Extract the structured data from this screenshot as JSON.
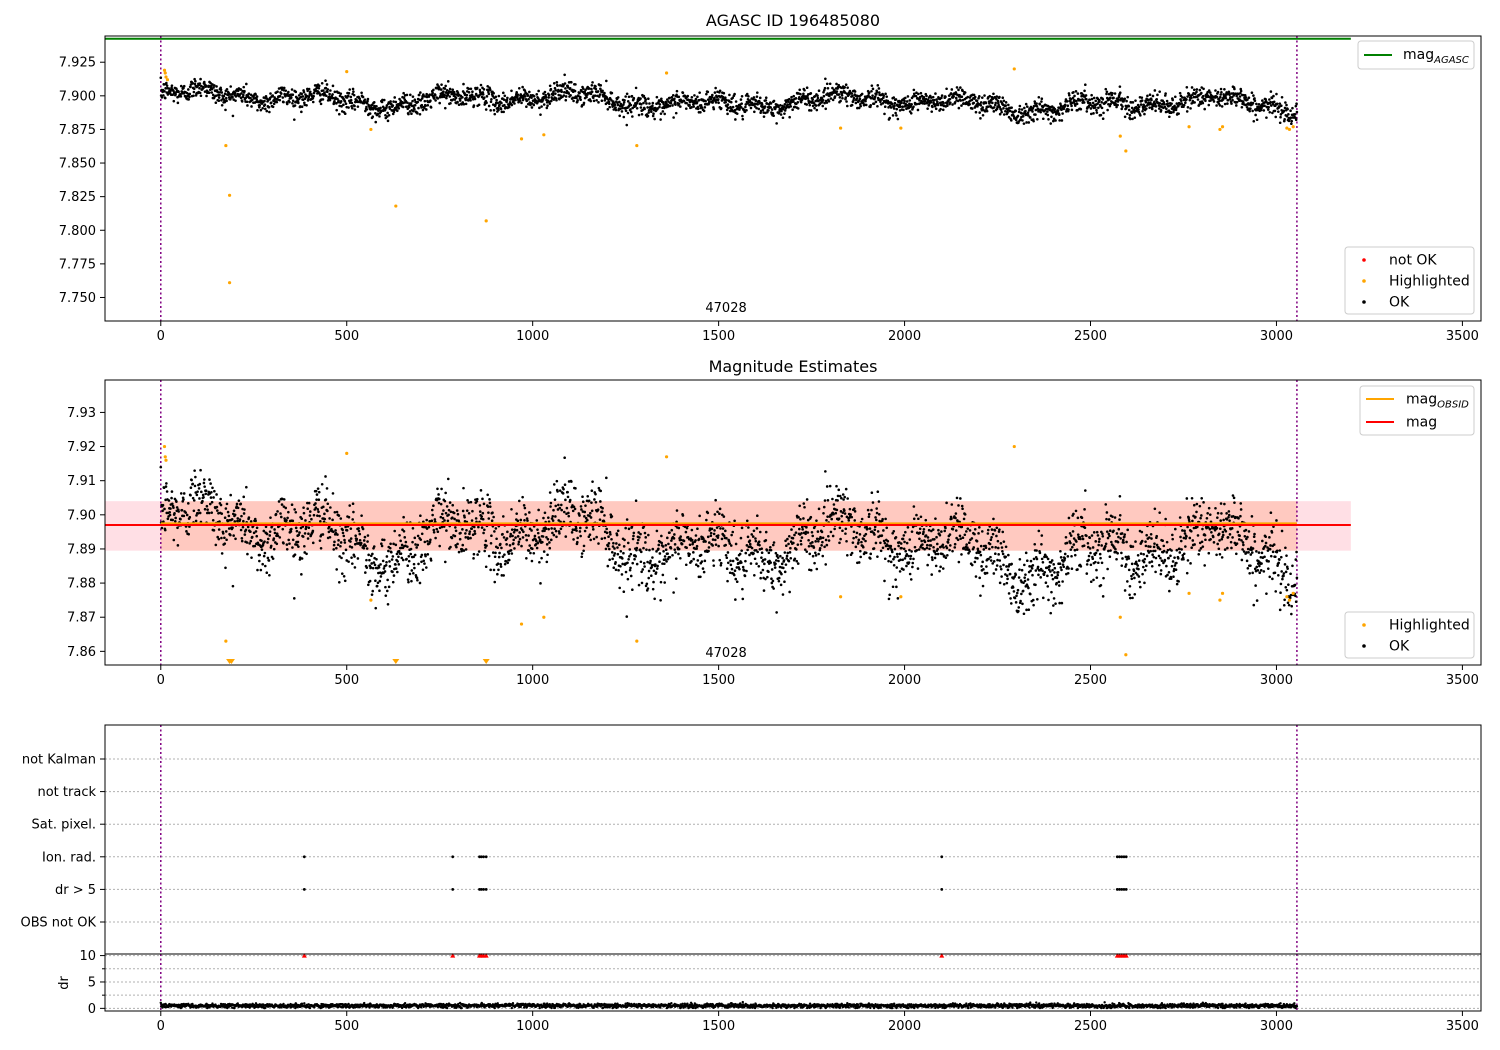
{
  "chart_data": [
    {
      "type": "scatter",
      "title": "AGASC ID 196485080",
      "xlabel": "",
      "ylabel": "",
      "xlim": [
        -150,
        3550
      ],
      "ylim": [
        7.7325,
        7.9445
      ],
      "xticks": [
        0,
        500,
        1000,
        1500,
        2000,
        2500,
        3000,
        3500
      ],
      "yticks": [
        7.75,
        7.775,
        7.8,
        7.825,
        7.85,
        7.875,
        7.9,
        7.925
      ],
      "ytick_labels": [
        "7.750",
        "7.775",
        "7.800",
        "7.825",
        "7.850",
        "7.875",
        "7.900",
        "7.925"
      ],
      "annotation": "47028",
      "annotation_x": 1520,
      "vlines": [
        0,
        3055
      ],
      "vline_color": "#800080",
      "lines": [
        {
          "name": "mag_AGASC",
          "label_main": "mag",
          "label_sub": "AGASC",
          "x": [
            -150,
            3200
          ],
          "y": [
            7.9425,
            7.9425
          ],
          "color": "#008000"
        }
      ],
      "ok_series": {
        "n": 3056,
        "base_y": 7.899,
        "noise": 0.0045
      },
      "highlighted": [
        {
          "x": 10,
          "y": 7.919
        },
        {
          "x": 12,
          "y": 7.917
        },
        {
          "x": 14,
          "y": 7.914
        },
        {
          "x": 18,
          "y": 7.912
        },
        {
          "x": 175,
          "y": 7.863
        },
        {
          "x": 185,
          "y": 7.826
        },
        {
          "x": 185,
          "y": 7.761
        },
        {
          "x": 500,
          "y": 7.918
        },
        {
          "x": 565,
          "y": 7.875
        },
        {
          "x": 632,
          "y": 7.818
        },
        {
          "x": 875,
          "y": 7.807
        },
        {
          "x": 970,
          "y": 7.868
        },
        {
          "x": 1030,
          "y": 7.871
        },
        {
          "x": 1280,
          "y": 7.863
        },
        {
          "x": 1360,
          "y": 7.917
        },
        {
          "x": 1828,
          "y": 7.876
        },
        {
          "x": 1990,
          "y": 7.876
        },
        {
          "x": 2295,
          "y": 7.92
        },
        {
          "x": 2580,
          "y": 7.87
        },
        {
          "x": 2595,
          "y": 7.859
        },
        {
          "x": 2765,
          "y": 7.877
        },
        {
          "x": 2848,
          "y": 7.875
        },
        {
          "x": 2855,
          "y": 7.877
        },
        {
          "x": 3028,
          "y": 7.876
        },
        {
          "x": 3035,
          "y": 7.875
        },
        {
          "x": 3045,
          "y": 7.877
        }
      ],
      "legend_lines": [
        "mag_AGASC"
      ],
      "legend_points": [
        {
          "label": "not OK",
          "color": "#ff0000"
        },
        {
          "label": "Highlighted",
          "color": "#ffa500"
        },
        {
          "label": "OK",
          "color": "#000000"
        }
      ]
    },
    {
      "type": "scatter",
      "title": "Magnitude Estimates",
      "xlabel": "",
      "ylabel": "",
      "xlim": [
        -150,
        3550
      ],
      "ylim": [
        7.856,
        7.9395
      ],
      "xticks": [
        0,
        500,
        1000,
        1500,
        2000,
        2500,
        3000,
        3500
      ],
      "yticks": [
        7.86,
        7.87,
        7.88,
        7.89,
        7.9,
        7.91,
        7.92,
        7.93
      ],
      "ytick_labels": [
        "7.86",
        "7.87",
        "7.88",
        "7.89",
        "7.90",
        "7.91",
        "7.92",
        "7.93"
      ],
      "annotation": "47028",
      "annotation_x": 1520,
      "vlines": [
        0,
        3055
      ],
      "vline_color": "#800080",
      "bands": [
        {
          "x": [
            -150,
            3200
          ],
          "y": [
            7.8895,
            7.904
          ],
          "color": "#ffc0cb",
          "opacity": 0.5
        },
        {
          "x": [
            0,
            3055
          ],
          "y": [
            7.8895,
            7.904
          ],
          "color": "#ffa07a",
          "opacity": 0.35
        }
      ],
      "lines": [
        {
          "name": "mag_OBSID",
          "label_main": "mag",
          "label_sub": "OBSID",
          "x": [
            0,
            3055
          ],
          "y": [
            7.8975,
            7.8975
          ],
          "color": "#ffa500"
        },
        {
          "name": "mag",
          "label_main": "mag",
          "label_sub": "",
          "x": [
            -150,
            3200
          ],
          "y": [
            7.897,
            7.897
          ],
          "color": "#ff0000"
        }
      ],
      "ok_series": {
        "n": 3056,
        "base_y": 7.896,
        "noise": 0.0055
      },
      "highlighted": [
        {
          "x": 10,
          "y": 7.92
        },
        {
          "x": 12,
          "y": 7.917
        },
        {
          "x": 14,
          "y": 7.916
        },
        {
          "x": 175,
          "y": 7.863
        },
        {
          "x": 500,
          "y": 7.918
        },
        {
          "x": 565,
          "y": 7.875
        },
        {
          "x": 970,
          "y": 7.868
        },
        {
          "x": 1030,
          "y": 7.87
        },
        {
          "x": 1280,
          "y": 7.863
        },
        {
          "x": 1360,
          "y": 7.917
        },
        {
          "x": 1828,
          "y": 7.876
        },
        {
          "x": 1990,
          "y": 7.876
        },
        {
          "x": 2295,
          "y": 7.92
        },
        {
          "x": 2580,
          "y": 7.87
        },
        {
          "x": 2595,
          "y": 7.859
        },
        {
          "x": 2765,
          "y": 7.877
        },
        {
          "x": 2848,
          "y": 7.875
        },
        {
          "x": 2855,
          "y": 7.877
        },
        {
          "x": 3028,
          "y": 7.876
        },
        {
          "x": 3035,
          "y": 7.875
        },
        {
          "x": 3045,
          "y": 7.877
        }
      ],
      "out_of_range_markers": [
        {
          "x": 185
        },
        {
          "x": 190
        },
        {
          "x": 632
        },
        {
          "x": 875
        }
      ],
      "legend_lines": [
        "mag_OBSID",
        "mag"
      ],
      "legend_points": [
        {
          "label": "Highlighted",
          "color": "#ffa500"
        },
        {
          "label": "OK",
          "color": "#000000"
        }
      ]
    },
    {
      "type": "scatter",
      "title": "",
      "xlabel": "",
      "ylabel": "",
      "xlim": [
        -150,
        3550
      ],
      "categories": [
        "not Kalman",
        "not track",
        "Sat. pixel.",
        "Ion. rad.",
        "dr > 5",
        "OBS not OK"
      ],
      "vlines": [
        0,
        3055
      ],
      "vline_color": "#800080",
      "flag_points": {
        "Ion. rad.": [
          386,
          785,
          857,
          862,
          868,
          875,
          2100,
          2572,
          2578,
          2584,
          2590,
          2596
        ],
        "dr > 5": [
          386,
          785,
          857,
          862,
          868,
          875,
          2100,
          2572,
          2578,
          2584,
          2590,
          2596
        ]
      }
    },
    {
      "type": "scatter",
      "title": "",
      "xlabel": "",
      "ylabel": "dr",
      "xlim": [
        -150,
        3550
      ],
      "ylim": [
        -0.5,
        10.3
      ],
      "xticks": [
        0,
        500,
        1000,
        1500,
        2000,
        2500,
        3000,
        3500
      ],
      "yticks": [
        0,
        5,
        10
      ],
      "ytick_labels": [
        "0",
        "5",
        "10"
      ],
      "minor_yticks": [
        2.5,
        7.5
      ],
      "vlines": [
        0,
        3055
      ],
      "vline_color": "#800080",
      "ok_series": {
        "n": 3056,
        "base_y": 0.5,
        "noise": 0.2
      },
      "capped_markers": {
        "y": 10,
        "x": [
          386,
          785,
          857,
          862,
          868,
          875,
          2100,
          2572,
          2578,
          2584,
          2590,
          2596
        ]
      }
    }
  ]
}
